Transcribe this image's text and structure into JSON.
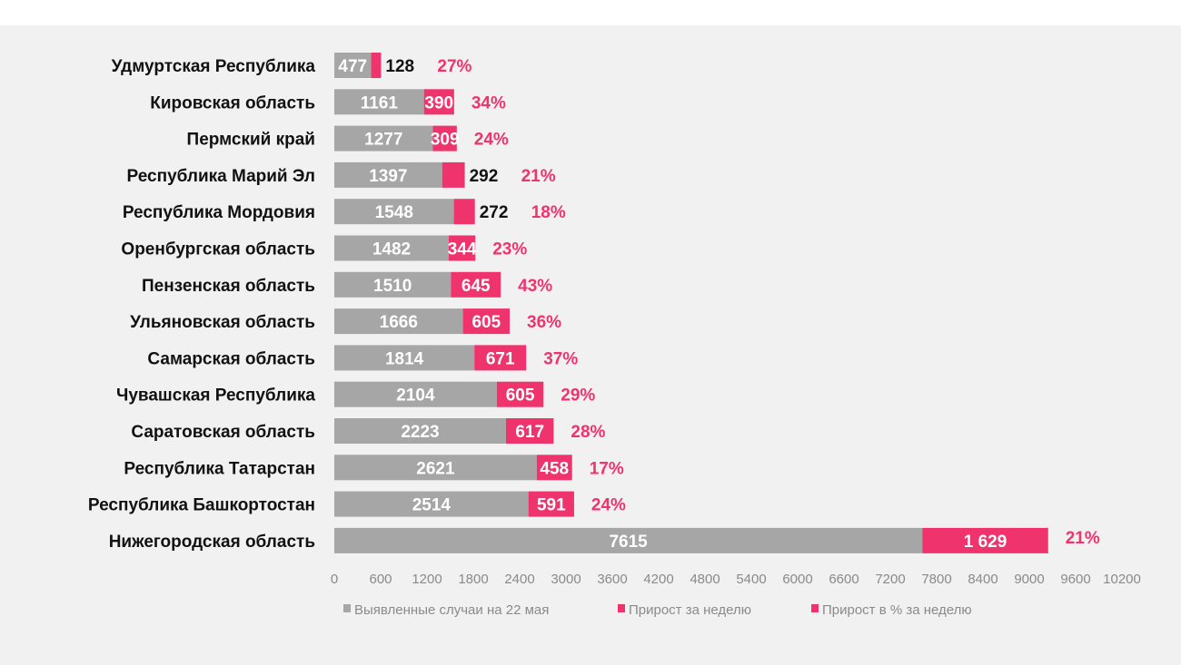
{
  "chart_data": {
    "type": "bar",
    "orientation": "horizontal",
    "stacked": true,
    "categories": [
      "Удмуртская Республика",
      "Кировская область",
      "Пермский край",
      "Республика Марий Эл",
      "Республика Мордовия",
      "Оренбургская область",
      "Пензенская область",
      "Ульяновская область",
      "Самарская область",
      "Чувашская Республика",
      "Саратовская область",
      "Республика Татарстан",
      "Республика Башкортостан",
      "Нижегородская область"
    ],
    "series": [
      {
        "name": "Выявленные случаи на 22 мая",
        "color": "#a6a6a6",
        "values": [
          477,
          1161,
          1277,
          1397,
          1548,
          1482,
          1510,
          1666,
          1814,
          2104,
          2223,
          2621,
          2514,
          7615
        ],
        "labels": [
          "477",
          "1161",
          "1277",
          "1397",
          "1548",
          "1482",
          "1510",
          "1666",
          "1814",
          "2104",
          "2223",
          "2621",
          "2514",
          "7615"
        ]
      },
      {
        "name": "Прирост за неделю",
        "color": "#ef336d",
        "values": [
          128,
          390,
          309,
          292,
          272,
          344,
          645,
          605,
          671,
          605,
          617,
          458,
          591,
          1629
        ],
        "labels": [
          "128",
          "390",
          "309",
          "292",
          "272",
          "344",
          "645",
          "605",
          "671",
          "605",
          "617",
          "458",
          "591",
          "1 629"
        ]
      },
      {
        "name": "Прирост в % за неделю",
        "color": "#ef336d",
        "values": [
          27,
          34,
          24,
          21,
          18,
          23,
          43,
          36,
          37,
          29,
          28,
          17,
          24,
          21
        ],
        "labels": [
          "27%",
          "34%",
          "24%",
          "21%",
          "18%",
          "23%",
          "43%",
          "36%",
          "37%",
          "29%",
          "28%",
          "17%",
          "24%",
          "21%"
        ]
      }
    ],
    "xlim": [
      0,
      10200
    ],
    "xticks": [
      "0",
      "600",
      "1200",
      "1800",
      "2400",
      "3000",
      "3600",
      "4200",
      "4800",
      "5400",
      "6000",
      "6600",
      "7200",
      "7800",
      "8400",
      "9000",
      "9600",
      "10200"
    ],
    "grid": false,
    "legend": "bottom"
  }
}
